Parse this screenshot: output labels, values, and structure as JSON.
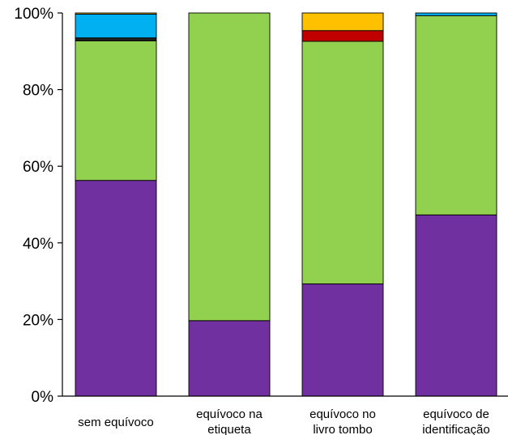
{
  "chart_data": {
    "type": "bar",
    "stacked": true,
    "categories": [
      [
        "sem equívoco"
      ],
      [
        "equívoco na",
        "etiqueta"
      ],
      [
        "equívoco no",
        "livro tombo"
      ],
      [
        "equívoco de",
        "identificação"
      ]
    ],
    "series": [
      {
        "color": "#7030A0",
        "values": [
          56.3,
          19.7,
          29.3,
          47.3
        ]
      },
      {
        "color": "#92D050",
        "values": [
          36.4,
          80.3,
          63.3,
          52.0
        ]
      },
      {
        "color": "#1F1F1F",
        "values": [
          0.8,
          0,
          0,
          0
        ]
      },
      {
        "color": "#C00000",
        "values": [
          0,
          0,
          2.8,
          0
        ]
      },
      {
        "color": "#00B0F0",
        "values": [
          6.2,
          0,
          0,
          0.7
        ]
      },
      {
        "color": "#FFC000",
        "values": [
          0.3,
          0,
          4.6,
          0
        ]
      }
    ],
    "yticks": [
      "0%",
      "20%",
      "40%",
      "60%",
      "80%",
      "100%"
    ],
    "ylim": [
      0,
      100
    ],
    "grid": false,
    "legend": "none"
  }
}
